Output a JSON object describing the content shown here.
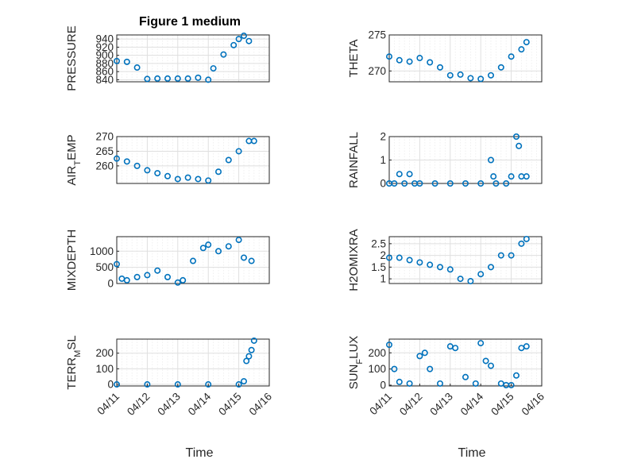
{
  "window": {
    "title": "Figure 1 medium"
  },
  "figure": {
    "marker_color": "#0072BD"
  },
  "chart_data": [
    {
      "type": "scatter",
      "title": "Figure 1 medium",
      "ylabel": "PRESSURE",
      "xlabel": "",
      "xlim": [
        "04/11",
        "04/16"
      ],
      "ylim": [
        835,
        950
      ],
      "yticks": [
        "840",
        "860",
        "880",
        "900",
        "920",
        "940"
      ],
      "xticks": [],
      "grid": "on",
      "x": [
        "04/11",
        "04/11 08:00",
        "04/11 16:00",
        "04/12",
        "04/12 08:00",
        "04/12 16:00",
        "04/13",
        "04/13 08:00",
        "04/13 16:00",
        "04/14",
        "04/14 04:00",
        "04/14 12:00",
        "04/14 20:00",
        "04/15",
        "04/15 04:00",
        "04/15 08:00"
      ],
      "y": [
        886,
        884,
        870,
        842,
        843,
        843,
        843,
        843,
        845,
        840,
        868,
        902,
        925,
        940,
        948,
        935
      ]
    },
    {
      "type": "scatter",
      "title": "",
      "ylabel": "THETA",
      "xlabel": "",
      "xlim": [
        "04/11",
        "04/16"
      ],
      "ylim": [
        268.5,
        275
      ],
      "yticks": [
        "270",
        "275"
      ],
      "xticks": [],
      "grid": "on",
      "x": [
        "04/11",
        "04/11 08:00",
        "04/11 16:00",
        "04/12",
        "04/12 08:00",
        "04/12 16:00",
        "04/13",
        "04/13 08:00",
        "04/13 16:00",
        "04/14",
        "04/14 08:00",
        "04/14 16:00",
        "04/15",
        "04/15 08:00",
        "04/15 12:00"
      ],
      "y": [
        272.0,
        271.5,
        271.3,
        271.8,
        271.2,
        270.5,
        269.4,
        269.5,
        269.0,
        268.9,
        269.4,
        270.5,
        272.0,
        273.0,
        274.0
      ]
    },
    {
      "type": "scatter",
      "title": "",
      "ylabel": "AIR_TEMP",
      "xlabel": "",
      "xlim": [
        "04/11",
        "04/16"
      ],
      "ylim": [
        254,
        270
      ],
      "yticks": [
        "260",
        "265",
        "270"
      ],
      "xticks": [],
      "grid": "on",
      "x": [
        "04/11",
        "04/11 08:00",
        "04/11 16:00",
        "04/12",
        "04/12 08:00",
        "04/12 16:00",
        "04/13",
        "04/13 08:00",
        "04/13 16:00",
        "04/14",
        "04/14 08:00",
        "04/14 16:00",
        "04/15",
        "04/15 08:00",
        "04/15 12:00"
      ],
      "y": [
        262.5,
        261.5,
        260.0,
        258.5,
        257.5,
        256.5,
        255.5,
        256.0,
        255.5,
        255.0,
        258.0,
        262.0,
        265.0,
        268.5,
        268.5
      ]
    },
    {
      "type": "scatter",
      "title": "",
      "ylabel": "RAINFALL",
      "xlabel": "",
      "xlim": [
        "04/11",
        "04/16"
      ],
      "ylim": [
        0,
        2
      ],
      "yticks": [
        "0",
        "1",
        "2"
      ],
      "xticks": [],
      "grid": "on",
      "x": [
        "04/11",
        "04/11 04:00",
        "04/11 08:00",
        "04/11 12:00",
        "04/11 16:00",
        "04/11 20:00",
        "04/12",
        "04/12 12:00",
        "04/13",
        "04/13 12:00",
        "04/14",
        "04/14 08:00",
        "04/14 10:00",
        "04/14 12:00",
        "04/14 20:00",
        "04/15",
        "04/15 04:00",
        "04/15 06:00",
        "04/15 08:00",
        "04/15 12:00"
      ],
      "y": [
        0,
        0,
        0.4,
        0,
        0.4,
        0,
        0,
        0,
        0,
        0,
        0,
        1.0,
        0.3,
        0,
        0,
        0.3,
        2.0,
        1.6,
        0.3,
        0.3
      ]
    },
    {
      "type": "scatter",
      "title": "",
      "ylabel": "MIXDEPTH",
      "xlabel": "",
      "xlim": [
        "04/11",
        "04/16"
      ],
      "ylim": [
        0,
        1450
      ],
      "yticks": [
        "0",
        "500",
        "1000"
      ],
      "xticks": [],
      "grid": "on",
      "x": [
        "04/11",
        "04/11 04:00",
        "04/11 08:00",
        "04/11 16:00",
        "04/12",
        "04/12 08:00",
        "04/12 16:00",
        "04/13",
        "04/13 04:00",
        "04/13 12:00",
        "04/13 20:00",
        "04/14",
        "04/14 08:00",
        "04/14 16:00",
        "04/15",
        "04/15 04:00",
        "04/15 10:00"
      ],
      "y": [
        600,
        150,
        100,
        200,
        260,
        400,
        200,
        30,
        100,
        700,
        1100,
        1200,
        1000,
        1150,
        1350,
        800,
        700
      ]
    },
    {
      "type": "scatter",
      "title": "",
      "ylabel": "H2OMIXRA",
      "xlabel": "",
      "xlim": [
        "04/11",
        "04/16"
      ],
      "ylim": [
        0.8,
        2.8
      ],
      "yticks": [
        "1",
        "1.5",
        "2",
        "2.5"
      ],
      "xticks": [],
      "grid": "on",
      "x": [
        "04/11",
        "04/11 08:00",
        "04/11 16:00",
        "04/12",
        "04/12 08:00",
        "04/12 16:00",
        "04/13",
        "04/13 08:00",
        "04/13 16:00",
        "04/14",
        "04/14 08:00",
        "04/14 16:00",
        "04/15",
        "04/15 08:00",
        "04/15 12:00"
      ],
      "y": [
        1.9,
        1.9,
        1.8,
        1.7,
        1.6,
        1.5,
        1.4,
        1.0,
        0.9,
        1.2,
        1.5,
        2.0,
        2.0,
        2.5,
        2.7
      ]
    },
    {
      "type": "scatter",
      "title": "",
      "ylabel": "TERR_MSL",
      "xlabel": "Time",
      "xlim": [
        "04/11",
        "04/16"
      ],
      "ylim": [
        -10,
        290
      ],
      "yticks": [
        "0",
        "100",
        "200"
      ],
      "xticks": [
        "04/11",
        "04/12",
        "04/13",
        "04/14",
        "04/15",
        "04/16"
      ],
      "grid": "on",
      "x": [
        "04/11",
        "04/12",
        "04/13",
        "04/14",
        "04/15",
        "04/15 04:00",
        "04/15 06:00",
        "04/15 08:00",
        "04/15 10:00",
        "04/15 12:00"
      ],
      "y": [
        0,
        0,
        0,
        0,
        0,
        20,
        150,
        180,
        220,
        280
      ]
    },
    {
      "type": "scatter",
      "title": "",
      "ylabel": "SUN_FLUX",
      "xlabel": "Time",
      "xlim": [
        "04/11",
        "04/16"
      ],
      "ylim": [
        -5,
        285
      ],
      "yticks": [
        "0",
        "100",
        "200"
      ],
      "xticks": [
        "04/11",
        "04/12",
        "04/13",
        "04/14",
        "04/15",
        "04/16"
      ],
      "grid": "on",
      "x": [
        "04/11",
        "04/11 04:00",
        "04/11 08:00",
        "04/11 16:00",
        "04/12",
        "04/12 04:00",
        "04/12 08:00",
        "04/12 16:00",
        "04/13",
        "04/13 04:00",
        "04/13 12:00",
        "04/13 20:00",
        "04/14",
        "04/14 04:00",
        "04/14 08:00",
        "04/14 16:00",
        "04/14 20:00",
        "04/15",
        "04/15 04:00",
        "04/15 08:00",
        "04/15 12:00"
      ],
      "y": [
        250,
        100,
        20,
        10,
        180,
        200,
        100,
        10,
        240,
        230,
        50,
        10,
        260,
        150,
        120,
        10,
        0,
        0,
        60,
        230,
        240
      ]
    }
  ]
}
